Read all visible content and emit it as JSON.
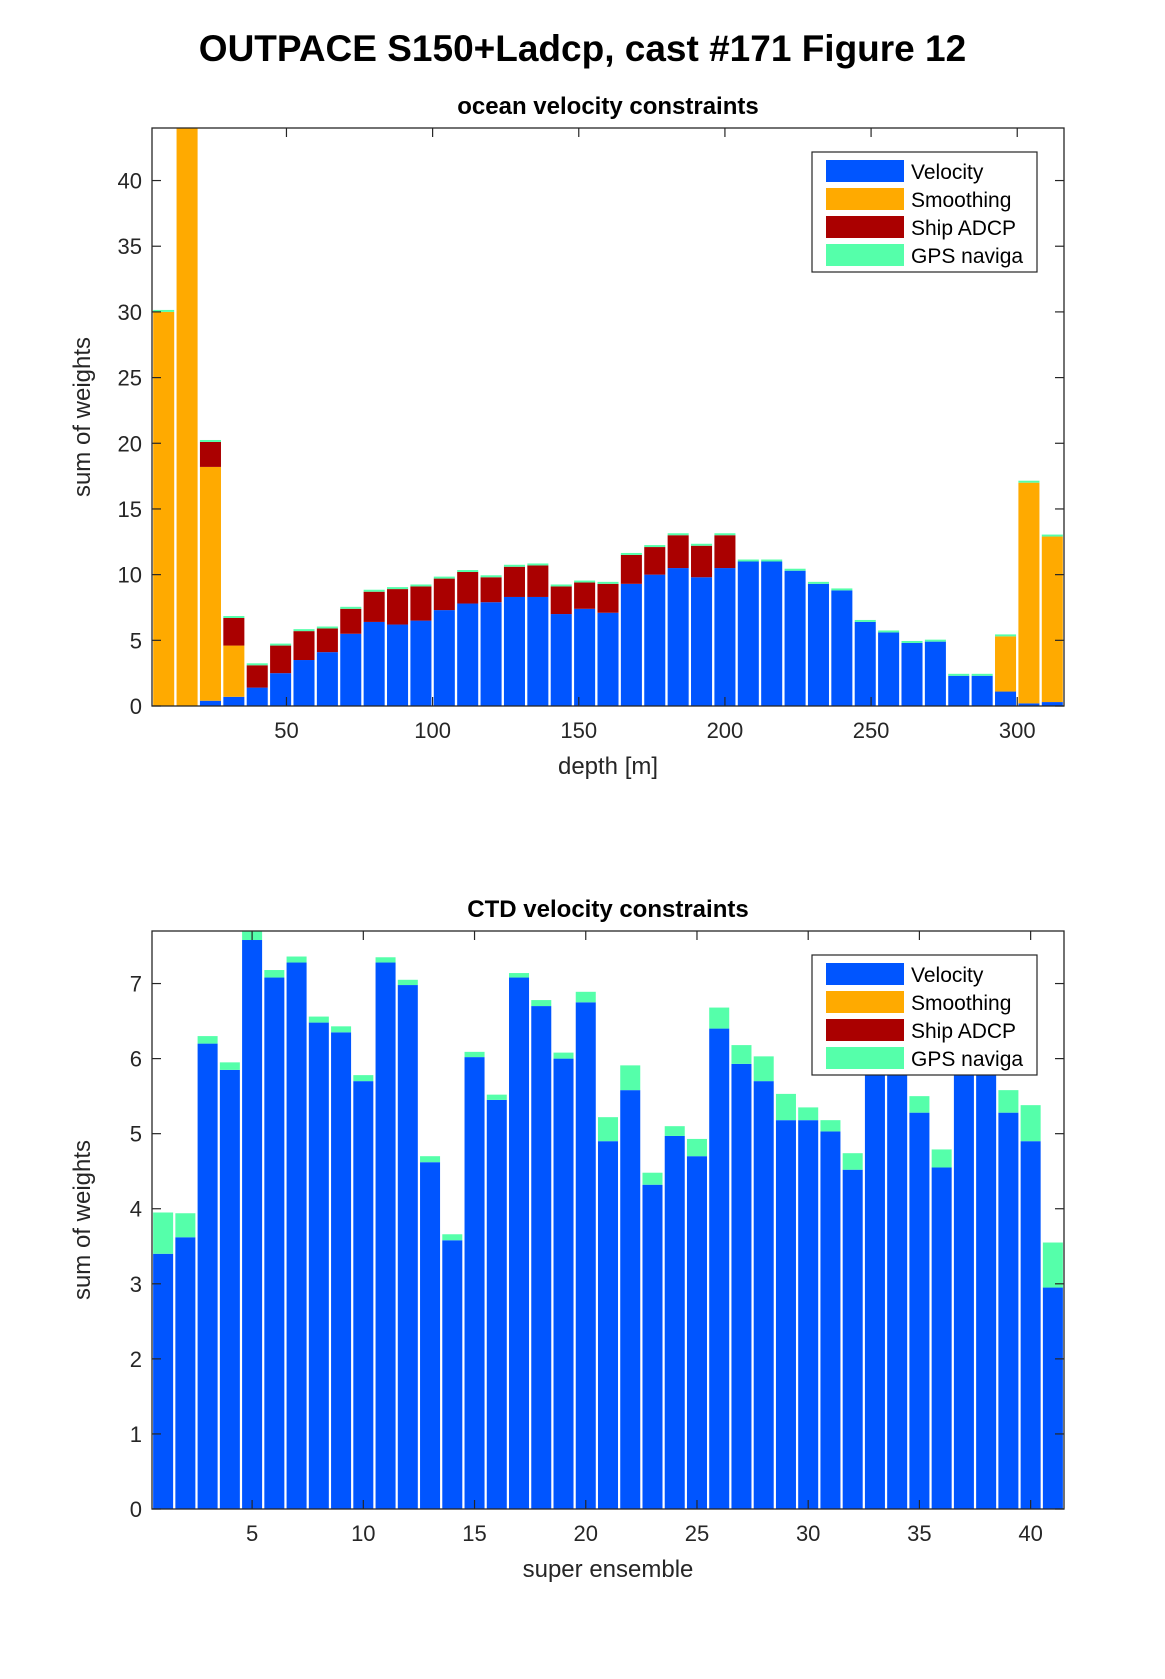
{
  "figure_title": "OUTPACE S150+Ladcp, cast #171  Figure 12",
  "colors": {
    "Velocity": "#0055ff",
    "Smoothing": "#ffaa00",
    "Ship ADCP": "#aa0000",
    "GPS naviga": "#55ffaa"
  },
  "chart_data": [
    {
      "type": "bar",
      "stacked": true,
      "title": "ocean velocity constraints",
      "xlabel": "depth [m]",
      "ylabel": "sum of weights",
      "xlim": [
        4,
        316
      ],
      "ylim": [
        0,
        44
      ],
      "xticks": [
        50,
        100,
        150,
        200,
        250,
        300
      ],
      "yticks": [
        0,
        5,
        10,
        15,
        20,
        25,
        30,
        35,
        40
      ],
      "bar_width": 7.2,
      "legend_position": "top-right",
      "x": [
        8,
        16,
        24,
        32,
        40,
        48,
        56,
        64,
        72,
        80,
        88,
        96,
        104,
        112,
        120,
        128,
        136,
        144,
        152,
        160,
        168,
        176,
        184,
        192,
        200,
        208,
        216,
        224,
        232,
        240,
        248,
        256,
        264,
        272,
        280,
        288,
        296,
        304,
        312
      ],
      "series": [
        {
          "name": "Velocity",
          "values": [
            0,
            0,
            0.4,
            0.7,
            1.4,
            2.5,
            3.5,
            4.1,
            5.5,
            6.4,
            6.2,
            6.5,
            7.3,
            7.8,
            7.9,
            8.3,
            8.3,
            7.0,
            7.4,
            7.1,
            9.3,
            10.0,
            10.5,
            9.8,
            10.5,
            11.0,
            11.0,
            10.3,
            9.3,
            8.8,
            6.4,
            5.6,
            4.8,
            4.9,
            2.3,
            2.3,
            1.1,
            0.2,
            0.3
          ]
        },
        {
          "name": "Smoothing",
          "values": [
            30.0,
            44.0,
            17.8,
            3.9,
            0,
            0,
            0,
            0,
            0,
            0,
            0,
            0,
            0,
            0,
            0,
            0,
            0,
            0,
            0,
            0,
            0,
            0,
            0,
            0,
            0,
            0,
            0,
            0,
            0,
            0,
            0,
            0,
            0,
            0,
            0,
            0,
            4.2,
            16.8,
            12.6
          ]
        },
        {
          "name": "Ship ADCP",
          "values": [
            0,
            0,
            1.9,
            2.1,
            1.7,
            2.1,
            2.2,
            1.8,
            1.9,
            2.3,
            2.7,
            2.6,
            2.4,
            2.4,
            1.9,
            2.3,
            2.4,
            2.1,
            2.0,
            2.2,
            2.2,
            2.1,
            2.5,
            2.4,
            2.5,
            0,
            0,
            0,
            0,
            0,
            0,
            0,
            0,
            0,
            0,
            0,
            0,
            0,
            0
          ]
        },
        {
          "name": "GPS naviga",
          "values": [
            0.15,
            0.2,
            0.15,
            0.15,
            0.15,
            0.15,
            0.15,
            0.15,
            0.15,
            0.15,
            0.15,
            0.15,
            0.15,
            0.15,
            0.15,
            0.15,
            0.15,
            0.15,
            0.15,
            0.15,
            0.15,
            0.15,
            0.15,
            0.15,
            0.15,
            0.15,
            0.15,
            0.15,
            0.15,
            0.15,
            0.15,
            0.15,
            0.15,
            0.15,
            0.15,
            0.15,
            0.15,
            0.15,
            0.15
          ]
        }
      ]
    },
    {
      "type": "bar",
      "stacked": true,
      "title": "CTD velocity constraints",
      "xlabel": "super ensemble",
      "ylabel": "sum of weights",
      "xlim": [
        0.5,
        41.5
      ],
      "ylim": [
        0,
        7.7
      ],
      "xticks": [
        5,
        10,
        15,
        20,
        25,
        30,
        35,
        40
      ],
      "yticks": [
        0,
        1,
        2,
        3,
        4,
        5,
        6,
        7
      ],
      "bar_width": 0.9,
      "legend_position": "top-right",
      "x": [
        1,
        2,
        3,
        4,
        5,
        6,
        7,
        8,
        9,
        10,
        11,
        12,
        13,
        14,
        15,
        16,
        17,
        18,
        19,
        20,
        21,
        22,
        23,
        24,
        25,
        26,
        27,
        28,
        29,
        30,
        31,
        32,
        33,
        34,
        35,
        36,
        37,
        38,
        39,
        40,
        41
      ],
      "series": [
        {
          "name": "Velocity",
          "values": [
            3.4,
            3.62,
            6.2,
            5.85,
            7.58,
            7.08,
            7.28,
            6.48,
            6.35,
            5.7,
            7.28,
            6.98,
            4.62,
            3.58,
            6.02,
            5.45,
            7.08,
            6.7,
            6.0,
            6.75,
            4.9,
            5.58,
            4.32,
            4.97,
            4.7,
            6.4,
            5.93,
            5.7,
            5.18,
            5.18,
            5.03,
            4.52,
            5.9,
            5.9,
            5.28,
            4.55,
            5.9,
            5.9,
            5.28,
            4.9,
            2.95
          ]
        },
        {
          "name": "Smoothing",
          "values": [
            0,
            0,
            0,
            0,
            0,
            0,
            0,
            0,
            0,
            0,
            0,
            0,
            0,
            0,
            0,
            0,
            0,
            0,
            0,
            0,
            0,
            0,
            0,
            0,
            0,
            0,
            0,
            0,
            0,
            0,
            0,
            0,
            0,
            0,
            0,
            0,
            0,
            0,
            0,
            0,
            0
          ]
        },
        {
          "name": "Ship ADCP",
          "values": [
            0,
            0,
            0,
            0,
            0,
            0,
            0,
            0,
            0,
            0,
            0,
            0,
            0,
            0,
            0,
            0,
            0,
            0,
            0,
            0,
            0,
            0,
            0,
            0,
            0,
            0,
            0,
            0,
            0,
            0,
            0,
            0,
            0,
            0,
            0,
            0,
            0,
            0,
            0,
            0,
            0
          ]
        },
        {
          "name": "GPS naviga",
          "values": [
            0.55,
            0.32,
            0.1,
            0.1,
            0.12,
            0.1,
            0.08,
            0.08,
            0.08,
            0.08,
            0.07,
            0.07,
            0.08,
            0.08,
            0.07,
            0.07,
            0.06,
            0.08,
            0.08,
            0.14,
            0.32,
            0.33,
            0.16,
            0.13,
            0.23,
            0.28,
            0.25,
            0.33,
            0.35,
            0.17,
            0.15,
            0.22,
            0.5,
            0.4,
            0.22,
            0.24,
            0.3,
            0.3,
            0.3,
            0.48,
            0.6
          ]
        }
      ]
    }
  ]
}
